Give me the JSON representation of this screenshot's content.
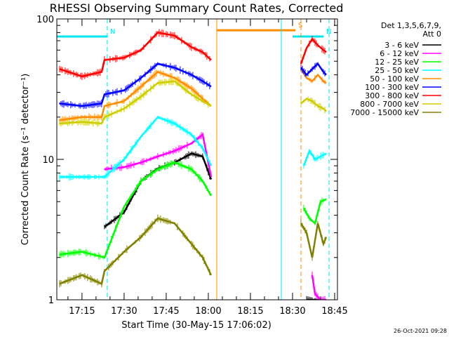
{
  "chart_data": {
    "type": "line",
    "title": "RHESSI Observing Summary Count Rates, Corrected",
    "xlabel": "Start Time (30-May-15 17:06:02)",
    "ylabel": "Corrected Count Rate (s⁻¹ detector⁻¹)",
    "y_scale": "log",
    "ylim": [
      1,
      100
    ],
    "y_ticks": [
      "1",
      "10",
      "100"
    ],
    "xlim": [
      "17:06:02",
      "18:46:00"
    ],
    "x_ticks": [
      "17:15",
      "17:30",
      "17:45",
      "18:00",
      "18:15",
      "18:30",
      "18:45"
    ],
    "footer": "26-Oct-2021 09:28",
    "legend_header": [
      "Det 1,3,5,6,7,9,",
      "Att 0"
    ],
    "flags": [
      {
        "label": "N",
        "color": "#00e5ee",
        "start": "17:06",
        "end": "17:24",
        "value": 75
      },
      {
        "label": "S",
        "color": "#ff8c00",
        "start": "18:03",
        "end": "18:31",
        "value": 83
      },
      {
        "label": "N",
        "color": "#00e5ee",
        "start": "18:30",
        "end": "18:41",
        "value": 75
      }
    ],
    "markers": [
      {
        "time": "17:24",
        "color": "#00e5ee",
        "style": "dashed"
      },
      {
        "time": "18:03",
        "color": "#ff8c00",
        "style": "solid"
      },
      {
        "time": "18:26",
        "color": "#00e5ee",
        "style": "solid"
      },
      {
        "time": "18:33",
        "color": "#ff8c00",
        "style": "dashed"
      },
      {
        "time": "18:43",
        "color": "#00e5ee",
        "style": "dashed"
      }
    ],
    "series": [
      {
        "name": "3 - 6 keV",
        "color": "#000000",
        "segments": [
          {
            "t": [
              "17:23",
              "17:30",
              "17:36",
              "17:42",
              "17:48",
              "17:54",
              "17:58",
              "18:01"
            ],
            "v": [
              3.3,
              4.2,
              7.0,
              8.6,
              9.5,
              11.0,
              10.5,
              7.2
            ]
          },
          {
            "t": [
              "18:35",
              "18:38",
              "18:40",
              "18:42"
            ],
            "v": [
              1.0,
              1.0,
              1.0,
              1.0
            ]
          }
        ]
      },
      {
        "name": "6 - 12 keV",
        "color": "#ff00ff",
        "segments": [
          {
            "t": [
              "17:23",
              "17:30",
              "17:36",
              "17:42",
              "17:48",
              "17:54",
              "17:58",
              "18:01"
            ],
            "v": [
              8.5,
              8.8,
              9.5,
              10.5,
              11.5,
              13.0,
              15.0,
              7.5
            ]
          },
          {
            "t": [
              "18:37",
              "18:38",
              "18:40",
              "18:42"
            ],
            "v": [
              1.5,
              1.1,
              1.0,
              1.0
            ]
          }
        ]
      },
      {
        "name": "12 - 25 keV",
        "color": "#00ff00",
        "segments": [
          {
            "t": [
              "17:07",
              "17:15",
              "17:23",
              "17:30",
              "17:36",
              "17:42",
              "17:48",
              "17:54",
              "17:58",
              "18:01"
            ],
            "v": [
              2.1,
              2.2,
              2.0,
              4.6,
              7.0,
              8.5,
              9.5,
              8.5,
              7.0,
              5.5
            ]
          },
          {
            "t": [
              "18:34",
              "18:36",
              "18:38",
              "18:40",
              "18:42"
            ],
            "v": [
              4.5,
              3.8,
              3.5,
              5.0,
              5.2
            ]
          }
        ]
      },
      {
        "name": "25 - 50 keV",
        "color": "#00ffff",
        "segments": [
          {
            "t": [
              "17:07",
              "17:15",
              "17:23",
              "17:30",
              "17:36",
              "17:42",
              "17:48",
              "17:54",
              "17:58",
              "18:01"
            ],
            "v": [
              7.5,
              7.5,
              7.5,
              10.0,
              14.5,
              20.0,
              18.0,
              15.0,
              12.0,
              9.0
            ]
          },
          {
            "t": [
              "18:34",
              "18:36",
              "18:38",
              "18:40",
              "18:42"
            ],
            "v": [
              9.0,
              11.5,
              10.0,
              10.5,
              11.0
            ]
          }
        ]
      },
      {
        "name": "50 - 100 keV",
        "color": "#ff8c00",
        "segments": [
          {
            "t": [
              "17:07",
              "17:15",
              "17:22",
              "17:23",
              "17:30",
              "17:36",
              "17:42",
              "17:48",
              "17:54",
              "17:58",
              "18:01"
            ],
            "v": [
              19.0,
              20.0,
              20.0,
              24.0,
              26.0,
              33.0,
              42.0,
              38.0,
              32.0,
              27.0,
              24.0
            ]
          },
          {
            "t": [
              "18:33",
              "18:35",
              "18:37",
              "18:39",
              "18:41",
              "18:42"
            ],
            "v": [
              44.0,
              38.0,
              36.0,
              40.0,
              36.0,
              35.0
            ]
          }
        ]
      },
      {
        "name": "100 - 300 keV",
        "color": "#0000ff",
        "segments": [
          {
            "t": [
              "17:07",
              "17:15",
              "17:22",
              "17:23",
              "17:30",
              "17:36",
              "17:42",
              "17:48",
              "17:54",
              "17:58",
              "18:01"
            ],
            "v": [
              25.0,
              24.0,
              25.0,
              29.0,
              31.0,
              38.0,
              48.0,
              45.0,
              40.0,
              36.0,
              33.0
            ]
          },
          {
            "t": [
              "18:33",
              "18:35",
              "18:37",
              "18:39",
              "18:41",
              "18:42"
            ],
            "v": [
              45.0,
              40.0,
              44.0,
              48.0,
              42.0,
              40.0
            ]
          }
        ]
      },
      {
        "name": "300 - 800 keV",
        "color": "#ff0000",
        "segments": [
          {
            "t": [
              "17:07",
              "17:15",
              "17:22",
              "17:23",
              "17:30",
              "17:36",
              "17:42",
              "17:48",
              "17:54",
              "17:58",
              "18:01"
            ],
            "v": [
              44.0,
              39.0,
              42.0,
              51.0,
              53.0,
              60.0,
              80.0,
              76.0,
              63.0,
              58.0,
              51.0
            ]
          },
          {
            "t": [
              "18:33",
              "18:35",
              "18:37",
              "18:39",
              "18:41",
              "18:42"
            ],
            "v": [
              48.0,
              62.0,
              72.0,
              65.0,
              60.0,
              58.0
            ]
          }
        ]
      },
      {
        "name": "800 - 7000 keV",
        "color": "#cdcd00",
        "segments": [
          {
            "t": [
              "17:07",
              "17:15",
              "17:22",
              "17:23",
              "17:30",
              "17:36",
              "17:42",
              "17:48",
              "17:54",
              "17:58",
              "18:01"
            ],
            "v": [
              18.0,
              18.5,
              18.0,
              20.0,
              23.0,
              28.0,
              35.0,
              36.0,
              29.0,
              26.0,
              24.0
            ]
          },
          {
            "t": [
              "18:33",
              "18:35",
              "18:37",
              "18:39",
              "18:41",
              "18:42"
            ],
            "v": [
              25.0,
              27.0,
              26.0,
              24.0,
              23.0,
              22.0
            ]
          }
        ]
      },
      {
        "name": "7000 - 15000 keV",
        "color": "#808000",
        "segments": [
          {
            "t": [
              "17:07",
              "17:15",
              "17:22",
              "17:23",
              "17:30",
              "17:36",
              "17:42",
              "17:48",
              "17:54",
              "17:58",
              "18:01"
            ],
            "v": [
              1.3,
              1.5,
              1.3,
              1.6,
              2.2,
              2.8,
              3.8,
              3.5,
              2.5,
              2.0,
              1.5
            ]
          },
          {
            "t": [
              "18:33",
              "18:35",
              "18:37",
              "18:39",
              "18:41",
              "18:42"
            ],
            "v": [
              3.5,
              3.0,
              2.0,
              3.5,
              2.5,
              2.8
            ]
          }
        ]
      }
    ]
  }
}
